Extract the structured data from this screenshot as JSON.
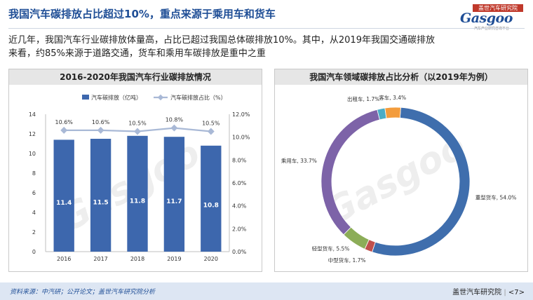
{
  "header": {
    "title": "我国汽车碳排放占比超过10%，重点来源于乘用车和货车",
    "logo_badge": "盖世汽车研究院",
    "logo_word": "Gasgoo",
    "logo_tagline": "汽车产业研究咨询平台"
  },
  "intro": {
    "line1": "近几年，我国汽车行业碳排放体量高，占比已超过我国总体碳排放10%。其中，从2019年我国交通碳排放",
    "line2": "来看，约85%来源于道路交通，货车和乘用车碳排放是重中之重"
  },
  "left_panel": {
    "title": "2016-2020年我国汽车行业碳排放情况"
  },
  "right_panel": {
    "title": "我国汽车领域碳排放占比分析（以2019年为例）"
  },
  "footer": {
    "source": "资料来源：中汽研；公开论文；盖世汽车研究院分析",
    "brand": "盖世汽车研究院",
    "page": "<7>"
  },
  "watermark": {
    "text": "盖世汽车研究院",
    "word": "Gasgoo"
  },
  "colors": {
    "bar": "#3d67ad",
    "line": "#a9b9d6",
    "title": "#1f4e96"
  },
  "chart_data": [
    {
      "type": "bar",
      "categories": [
        "2016",
        "2017",
        "2018",
        "2019",
        "2020"
      ],
      "series": [
        {
          "name": "汽车碳排放（亿吨）",
          "type": "bar",
          "axis": "left",
          "values": [
            11.4,
            11.5,
            11.8,
            11.7,
            10.8
          ],
          "labels": [
            "11.4",
            "11.5",
            "11.8",
            "11.7",
            "10.8"
          ]
        },
        {
          "name": "汽车碳排放占比（%）",
          "type": "line",
          "axis": "right",
          "values": [
            10.6,
            10.6,
            10.5,
            10.8,
            10.5
          ],
          "labels": [
            "10.6%",
            "10.6%",
            "10.5%",
            "10.8%",
            "10.5%"
          ]
        }
      ],
      "ylim": [
        0,
        14
      ],
      "y_ticks": [
        "0",
        "2",
        "4",
        "6",
        "8",
        "10",
        "12",
        "14"
      ],
      "y2lim": [
        0,
        12
      ],
      "y2_ticks": [
        "0.0%",
        "2.0%",
        "4.0%",
        "6.0%",
        "8.0%",
        "10.0%",
        "12.0%"
      ],
      "legend_position": "top",
      "grid": false
    },
    {
      "type": "pie",
      "style": "donut",
      "slices": [
        {
          "label": "重型货车, 54.0%",
          "value": 54.0,
          "color": "#3f6ead"
        },
        {
          "label": "中型货车, 1.7%",
          "value": 1.7,
          "color": "#c0504d"
        },
        {
          "label": "轻型货车, 5.5%",
          "value": 5.5,
          "color": "#8cad58"
        },
        {
          "label": "乘用车, 33.7%",
          "value": 33.7,
          "color": "#7d63a8"
        },
        {
          "label": "出租车, 1.7%",
          "value": 1.7,
          "color": "#4bacc6"
        },
        {
          "label": "客车, 3.4%",
          "value": 3.4,
          "color": "#f39c3c"
        }
      ],
      "legend_position": "none"
    }
  ]
}
